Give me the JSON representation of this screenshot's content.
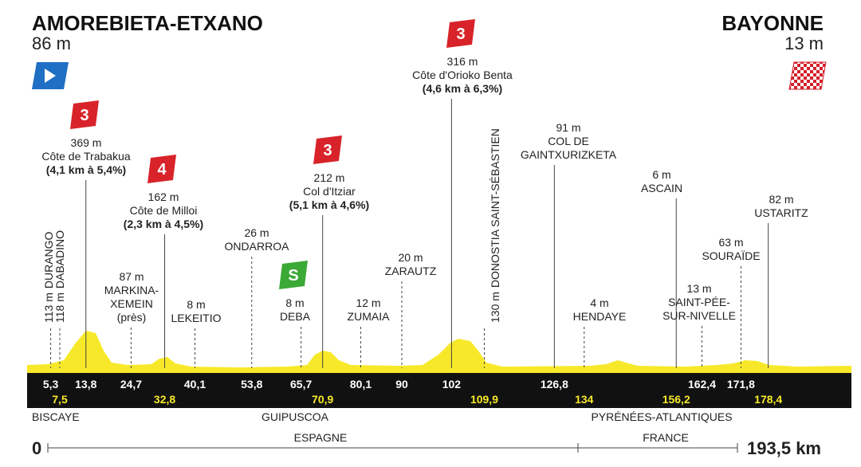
{
  "start": {
    "name": "AMOREBIETA-ETXANO",
    "altitude": "86 m"
  },
  "finish": {
    "name": "BAYONNE",
    "altitude": "13 m"
  },
  "places": [
    {
      "km": "5,3",
      "alt": "113 m",
      "name": [
        "DURANGO"
      ]
    },
    {
      "km": "7,5",
      "alt": "118 m",
      "name": [
        "DABADINO"
      ]
    },
    {
      "km": "13,8",
      "alt": "369 m",
      "name": [
        "Côte de Trabakua"
      ],
      "climb": "(4,1 km à 5,4%)",
      "category": "3"
    },
    {
      "km": "24,7",
      "alt": "87 m",
      "name": [
        "MARKINA-",
        "XEMEIN",
        "(près)"
      ]
    },
    {
      "km": "32,8",
      "alt": "162 m",
      "name": [
        "Côte de Milloi"
      ],
      "climb": "(2,3 km à 4,5%)",
      "category": "4"
    },
    {
      "km": "40,1",
      "alt": "8 m",
      "name": [
        "LEKEITIO"
      ]
    },
    {
      "km": "53,8",
      "alt": "26 m",
      "name": [
        "ONDARROA"
      ]
    },
    {
      "km": "65,7",
      "alt": "8 m",
      "name": [
        "DEBA"
      ],
      "sprint": "S"
    },
    {
      "km": "70,9",
      "alt": "212 m",
      "name": [
        "Col d'Itziar"
      ],
      "climb": "(5,1 km à 4,6%)",
      "category": "3"
    },
    {
      "km": "80,1",
      "alt": "12 m",
      "name": [
        "ZUMAIA"
      ]
    },
    {
      "km": "90",
      "alt": "20 m",
      "name": [
        "ZARAUTZ"
      ]
    },
    {
      "km": "102",
      "alt": "316 m",
      "name": [
        "Côte d'Orioko Benta"
      ],
      "climb": "(4,6 km à 6,3%)",
      "category": "3"
    },
    {
      "km": "109,9",
      "alt": "130 m",
      "name": [
        "DONOSTIA SAINT-SÉBASTIEN"
      ]
    },
    {
      "km": "126,8",
      "alt": "91 m",
      "name": [
        "COL DE",
        "GAINTXURIZKETA"
      ]
    },
    {
      "km": "134",
      "alt": "4 m",
      "name": [
        "HENDAYE"
      ]
    },
    {
      "km": "156,2",
      "alt": "6 m",
      "name": [
        "ASCAIN"
      ]
    },
    {
      "km": "162,4",
      "alt": "13 m",
      "name": [
        "SAINT-PÉE-",
        "SUR-NIVELLE"
      ]
    },
    {
      "km": "171,8",
      "alt": "63 m",
      "name": [
        "SOURAÏDE"
      ]
    },
    {
      "km": "178,4",
      "alt": "82 m",
      "name": [
        "USTARITZ"
      ]
    }
  ],
  "regions": [
    "BISCAYE",
    "GUIPUSCOA",
    "PYRÉNÉES-ATLANTIQUES"
  ],
  "countries": [
    "ESPAGNE",
    "FRANCE"
  ],
  "distance": {
    "start": "0",
    "end": "193,5 km"
  }
}
